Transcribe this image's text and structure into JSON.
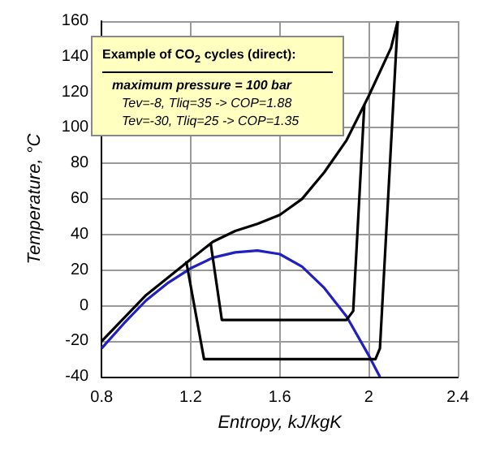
{
  "chart_data": {
    "type": "line",
    "xlabel": "Entropy, kJ/kgK",
    "ylabel": "Temperature, °C",
    "xlim": [
      0.8,
      2.4
    ],
    "xticks": [
      0.8,
      1.2,
      1.6,
      2,
      2.4
    ],
    "ylim": [
      -40,
      160
    ],
    "yticks": [
      -40,
      -20,
      0,
      20,
      40,
      60,
      80,
      100,
      120,
      140,
      160
    ],
    "grid": true,
    "marker": "none",
    "line_style": "solid",
    "annotations": [
      "Example of CO$_{2}$ cycles (direct):",
      "maximum pressure = 100 bar",
      "Tev=-8, Tliq=35 -> COP=1.88",
      "Tev=-30, Tliq=25 -> COP=1.35"
    ],
    "series": [
      {
        "color": "#2020c0",
        "x": [
          0.8,
          0.9,
          1.0,
          1.1,
          1.2,
          1.3,
          1.4,
          1.5,
          1.6,
          1.7,
          1.8,
          1.9,
          2.0,
          2.05
        ],
        "values": [
          -24,
          -10,
          3,
          13,
          21,
          27,
          30,
          31,
          29,
          22,
          10,
          -6,
          -28,
          -40
        ]
      },
      {
        "color": "#000000",
        "x": [
          0.8,
          1.0,
          1.2,
          1.3,
          1.4,
          1.5,
          1.6,
          1.7,
          1.8,
          1.9,
          2.0,
          2.1,
          2.13
        ],
        "values": [
          -20,
          6,
          26,
          36,
          42,
          46,
          51,
          60,
          75,
          93,
          118,
          145,
          160
        ]
      },
      {
        "color": "#000000",
        "x": [
          1.29,
          1.34,
          1.9,
          1.93,
          1.98
        ],
        "values": [
          35,
          -8,
          -8,
          -3,
          113
        ]
      },
      {
        "color": "#000000",
        "x": [
          1.18,
          1.26,
          2.03,
          2.05,
          2.13
        ],
        "values": [
          25,
          -30,
          -30,
          -24,
          160
        ]
      }
    ]
  }
}
